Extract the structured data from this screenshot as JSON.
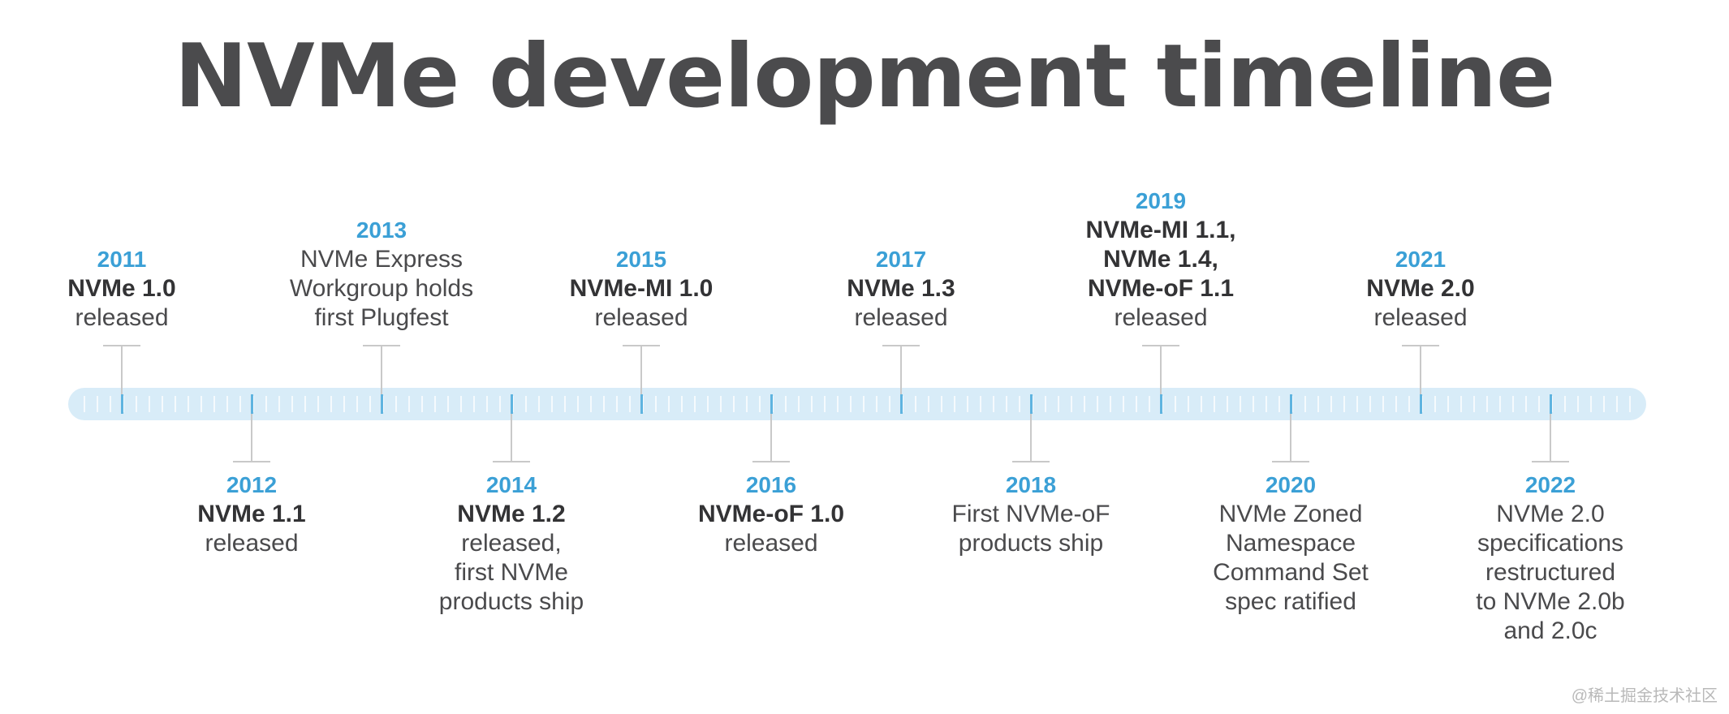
{
  "title": "NVMe development timeline",
  "events": [
    {
      "year": "2011",
      "position": "above",
      "headline": [
        "NVMe 1.0"
      ],
      "desc": [
        "released"
      ]
    },
    {
      "year": "2012",
      "position": "below",
      "headline": [
        "NVMe 1.1"
      ],
      "desc": [
        "released"
      ]
    },
    {
      "year": "2013",
      "position": "above",
      "headline": [],
      "desc": [
        "NVMe Express",
        "Workgroup holds",
        "first Plugfest"
      ]
    },
    {
      "year": "2014",
      "position": "below",
      "headline": [
        "NVMe 1.2"
      ],
      "desc": [
        "released,",
        "first NVMe",
        "products ship"
      ]
    },
    {
      "year": "2015",
      "position": "above",
      "headline": [
        "NVMe-MI 1.0"
      ],
      "desc": [
        "released"
      ]
    },
    {
      "year": "2016",
      "position": "below",
      "headline": [
        "NVMe-oF 1.0"
      ],
      "desc": [
        "released"
      ]
    },
    {
      "year": "2017",
      "position": "above",
      "headline": [
        "NVMe 1.3"
      ],
      "desc": [
        "released"
      ]
    },
    {
      "year": "2018",
      "position": "below",
      "headline": [],
      "desc": [
        "First NVMe-oF",
        "products ship"
      ]
    },
    {
      "year": "2019",
      "position": "above",
      "headline": [
        "NVMe-MI 1.1,",
        "NVMe 1.4,",
        "NVMe-oF 1.1"
      ],
      "desc": [
        "released"
      ]
    },
    {
      "year": "2020",
      "position": "below",
      "headline": [],
      "desc": [
        "NVMe Zoned",
        "Namespace",
        "Command Set",
        "spec ratified"
      ]
    },
    {
      "year": "2021",
      "position": "above",
      "headline": [
        "NVMe 2.0"
      ],
      "desc": [
        "released"
      ]
    },
    {
      "year": "2022",
      "position": "below",
      "headline": [],
      "desc": [
        "NVMe 2.0",
        "specifications",
        "restructured",
        "to NVMe 2.0b",
        "and 2.0c"
      ]
    }
  ],
  "watermark": "@稀土掘金技术社区",
  "colors": {
    "year": "#3ba0d6",
    "bar": "#d8ecf8",
    "title": "#4b4b4d"
  }
}
